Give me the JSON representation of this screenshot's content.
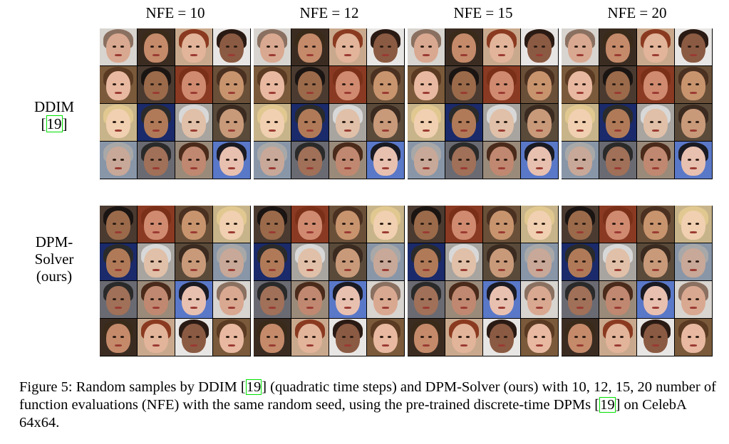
{
  "columns": [
    "NFE = 10",
    "NFE = 12",
    "NFE = 15",
    "NFE = 20"
  ],
  "rows": [
    {
      "label_lines": [
        "DDIM",
        "[19]"
      ],
      "cite": "19"
    },
    {
      "label_lines": [
        "DPM-",
        "Solver",
        "(ours)"
      ]
    }
  ],
  "caption": {
    "part1": "Figure 5:  Random samples by DDIM [",
    "cite1": "19",
    "part2": "] (quadratic time steps) and DPM-Solver (ours) with 10, 12, 15, 20 number of function evaluations (NFE) with the same random seed, using the pre-trained discrete-time DPMs [",
    "cite2": "19",
    "part3": "] on CelebA 64x64."
  },
  "palette": {
    "backgrounds": [
      "#d8d4cf",
      "#3b2c22",
      "#c9a98d",
      "#e8e6e4",
      "#7a5a3a",
      "#4a3a30",
      "#8a3a22",
      "#6a5038",
      "#c8b48a",
      "#1a2a6a",
      "#a8a4a0",
      "#5a4a3a",
      "#8896a8",
      "#6a6a72",
      "#9a8a7a",
      "#5a78c8"
    ],
    "skins": [
      "#d9a890",
      "#c48a6a",
      "#e2b49a",
      "#8a5a42",
      "#e8b8a0",
      "#9a6a4a",
      "#d08a70",
      "#c8946e",
      "#f0d0b0",
      "#b07a58",
      "#e0c0a8",
      "#c89a7a",
      "#c8a898",
      "#a07058",
      "#c08870",
      "#e8c0b0"
    ],
    "hairs": [
      "#8a7060",
      "#3a2a1a",
      "#8a3a20",
      "#2a1a14",
      "#5a3a22",
      "#1a1412",
      "#7a3018",
      "#4a3020",
      "#e0c890",
      "#2a2a2a",
      "#d8d8d8",
      "#3a2a20",
      "#a8a8a8",
      "#2a2a2a",
      "#4a2a1a",
      "#1a1a22"
    ]
  }
}
